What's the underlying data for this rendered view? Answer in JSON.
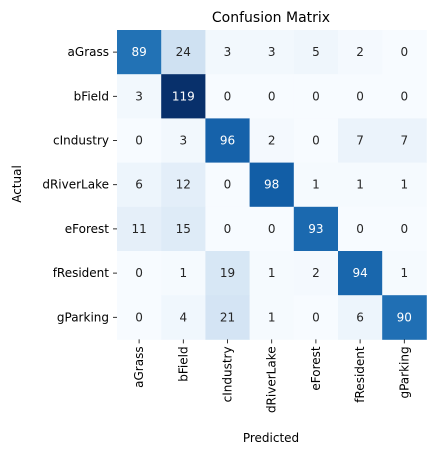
{
  "chart_data": {
    "type": "heatmap",
    "title": "Confusion Matrix",
    "xlabel": "Predicted",
    "ylabel": "Actual",
    "colormap": "Blues",
    "grid": false,
    "colorbar": false,
    "x_categories": [
      "aGrass",
      "bField",
      "cIndustry",
      "dRiverLake",
      "eForest",
      "fResident",
      "gParking"
    ],
    "y_categories": [
      "aGrass",
      "bField",
      "cIndustry",
      "dRiverLake",
      "eForest",
      "fResident",
      "gParking"
    ],
    "values": [
      [
        89,
        24,
        3,
        3,
        5,
        2,
        0
      ],
      [
        3,
        119,
        0,
        0,
        0,
        0,
        0
      ],
      [
        0,
        3,
        96,
        2,
        0,
        7,
        7
      ],
      [
        6,
        12,
        0,
        98,
        1,
        1,
        1
      ],
      [
        11,
        15,
        0,
        0,
        93,
        0,
        0
      ],
      [
        0,
        1,
        19,
        1,
        2,
        94,
        1
      ],
      [
        0,
        4,
        21,
        1,
        0,
        6,
        90
      ]
    ]
  }
}
